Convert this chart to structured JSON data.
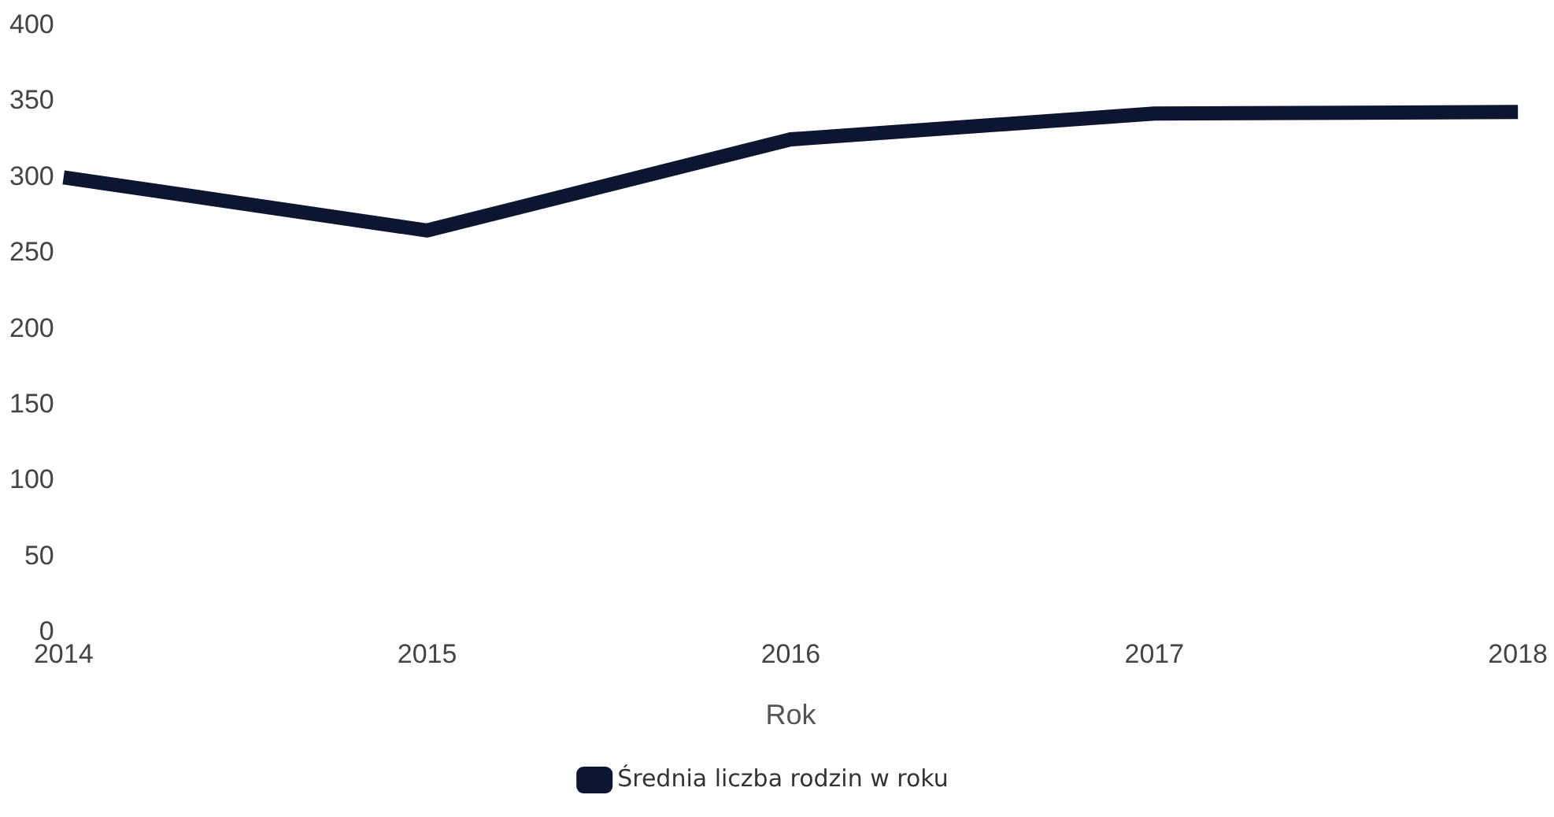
{
  "chart_data": {
    "type": "line",
    "xlabel": "Rok",
    "categories": [
      "2014",
      "2015",
      "2016",
      "2017",
      "2018"
    ],
    "series": [
      {
        "name": "Średnia liczba rodzin w roku",
        "color": "#0d1530",
        "values": [
          300,
          265,
          325,
          342,
          343
        ]
      }
    ],
    "ylim": [
      0,
      400
    ],
    "yticks": [
      0,
      50,
      100,
      150,
      200,
      250,
      300,
      350,
      400
    ],
    "grid": false,
    "legend": "bottom",
    "marker": "none"
  }
}
